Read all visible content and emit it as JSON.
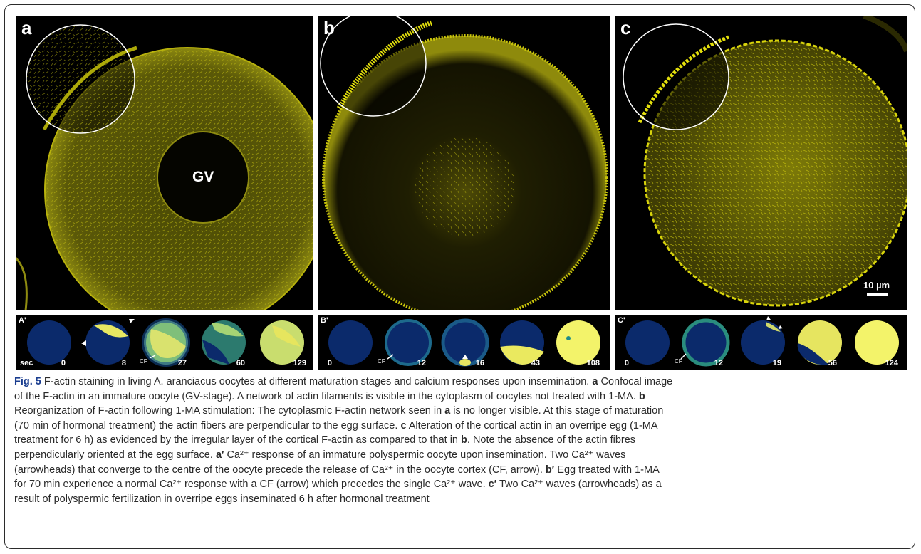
{
  "panels": [
    {
      "id": "a",
      "label": "a",
      "center_label": "GV",
      "scale_label": ""
    },
    {
      "id": "b",
      "label": "b",
      "center_label": "",
      "scale_label": ""
    },
    {
      "id": "c",
      "label": "c",
      "center_label": "",
      "scale_label": "10 µm"
    }
  ],
  "strips": [
    {
      "id": "A'",
      "label": "A'",
      "unit_label": "sec",
      "times": [
        "0",
        "8",
        "27",
        "60",
        "129"
      ]
    },
    {
      "id": "B'",
      "label": "B'",
      "unit_label": "",
      "times": [
        "0",
        "12",
        "16",
        "43",
        "108"
      ]
    },
    {
      "id": "C'",
      "label": "C'",
      "unit_label": "",
      "times": [
        "0",
        "12",
        "19",
        "56",
        "124"
      ]
    }
  ],
  "cf_label": "CF",
  "colors": {
    "actin": "#c9c400",
    "calcium_low": "#0b2a6b",
    "calcium_high": "#f3f36a",
    "frame": "#2b2b2b"
  },
  "caption": {
    "fig_label": "Fig. 5",
    "line1": " F-actin staining in living A. aranciacus oocytes at different maturation stages and calcium responses upon insemination.",
    "line1_a": "a",
    "line1_b": " Confocal image",
    "line2": "of the F-actin in an immature oocyte (GV-stage). A network of actin filaments is visible in the cytoplasm of oocytes not treated with 1-MA.",
    "line2_b": "b",
    "line3": "Reorganization of F-actin following 1-MA stimulation: The cytoplasmic F-actin network seen in",
    "line3_a": "a",
    "line3_end": "is no longer visible. At this stage of maturation",
    "line4": "(70 min of hormonal treatment) the actin fibers are perpendicular to the egg surface.",
    "line4_c": "c",
    "line4_end": "Alteration of the cortical actin in an overripe egg (1-MA",
    "line5": "treatment for 6 h) as evidenced by the irregular layer of the cortical F-actin as compared to that in",
    "line5_b": "b",
    "line5_end": ". Note the absence of the actin fibres",
    "line6": "perpendicularly oriented at the egg surface.",
    "line6_a": "a′",
    "line6_end": "Ca²⁺ response of an immature polyspermic oocyte upon insemination. Two Ca²⁺ waves",
    "line7": "(arrowheads) that converge to the centre of the oocyte precede the release of Ca²⁺ in the oocyte cortex (CF, arrow).",
    "line7_b": "b′",
    "line7_end": "Egg treated with 1-MA",
    "line8": "for 70 min experience a normal Ca²⁺ response with a CF (arrow) which precedes the single Ca²⁺ wave.",
    "line8_c": "c′",
    "line8_end": "Two Ca²⁺ waves (arrowheads) as a",
    "line9": "result of polyspermic fertilization in overripe eggs inseminated 6 h after hormonal treatment"
  }
}
